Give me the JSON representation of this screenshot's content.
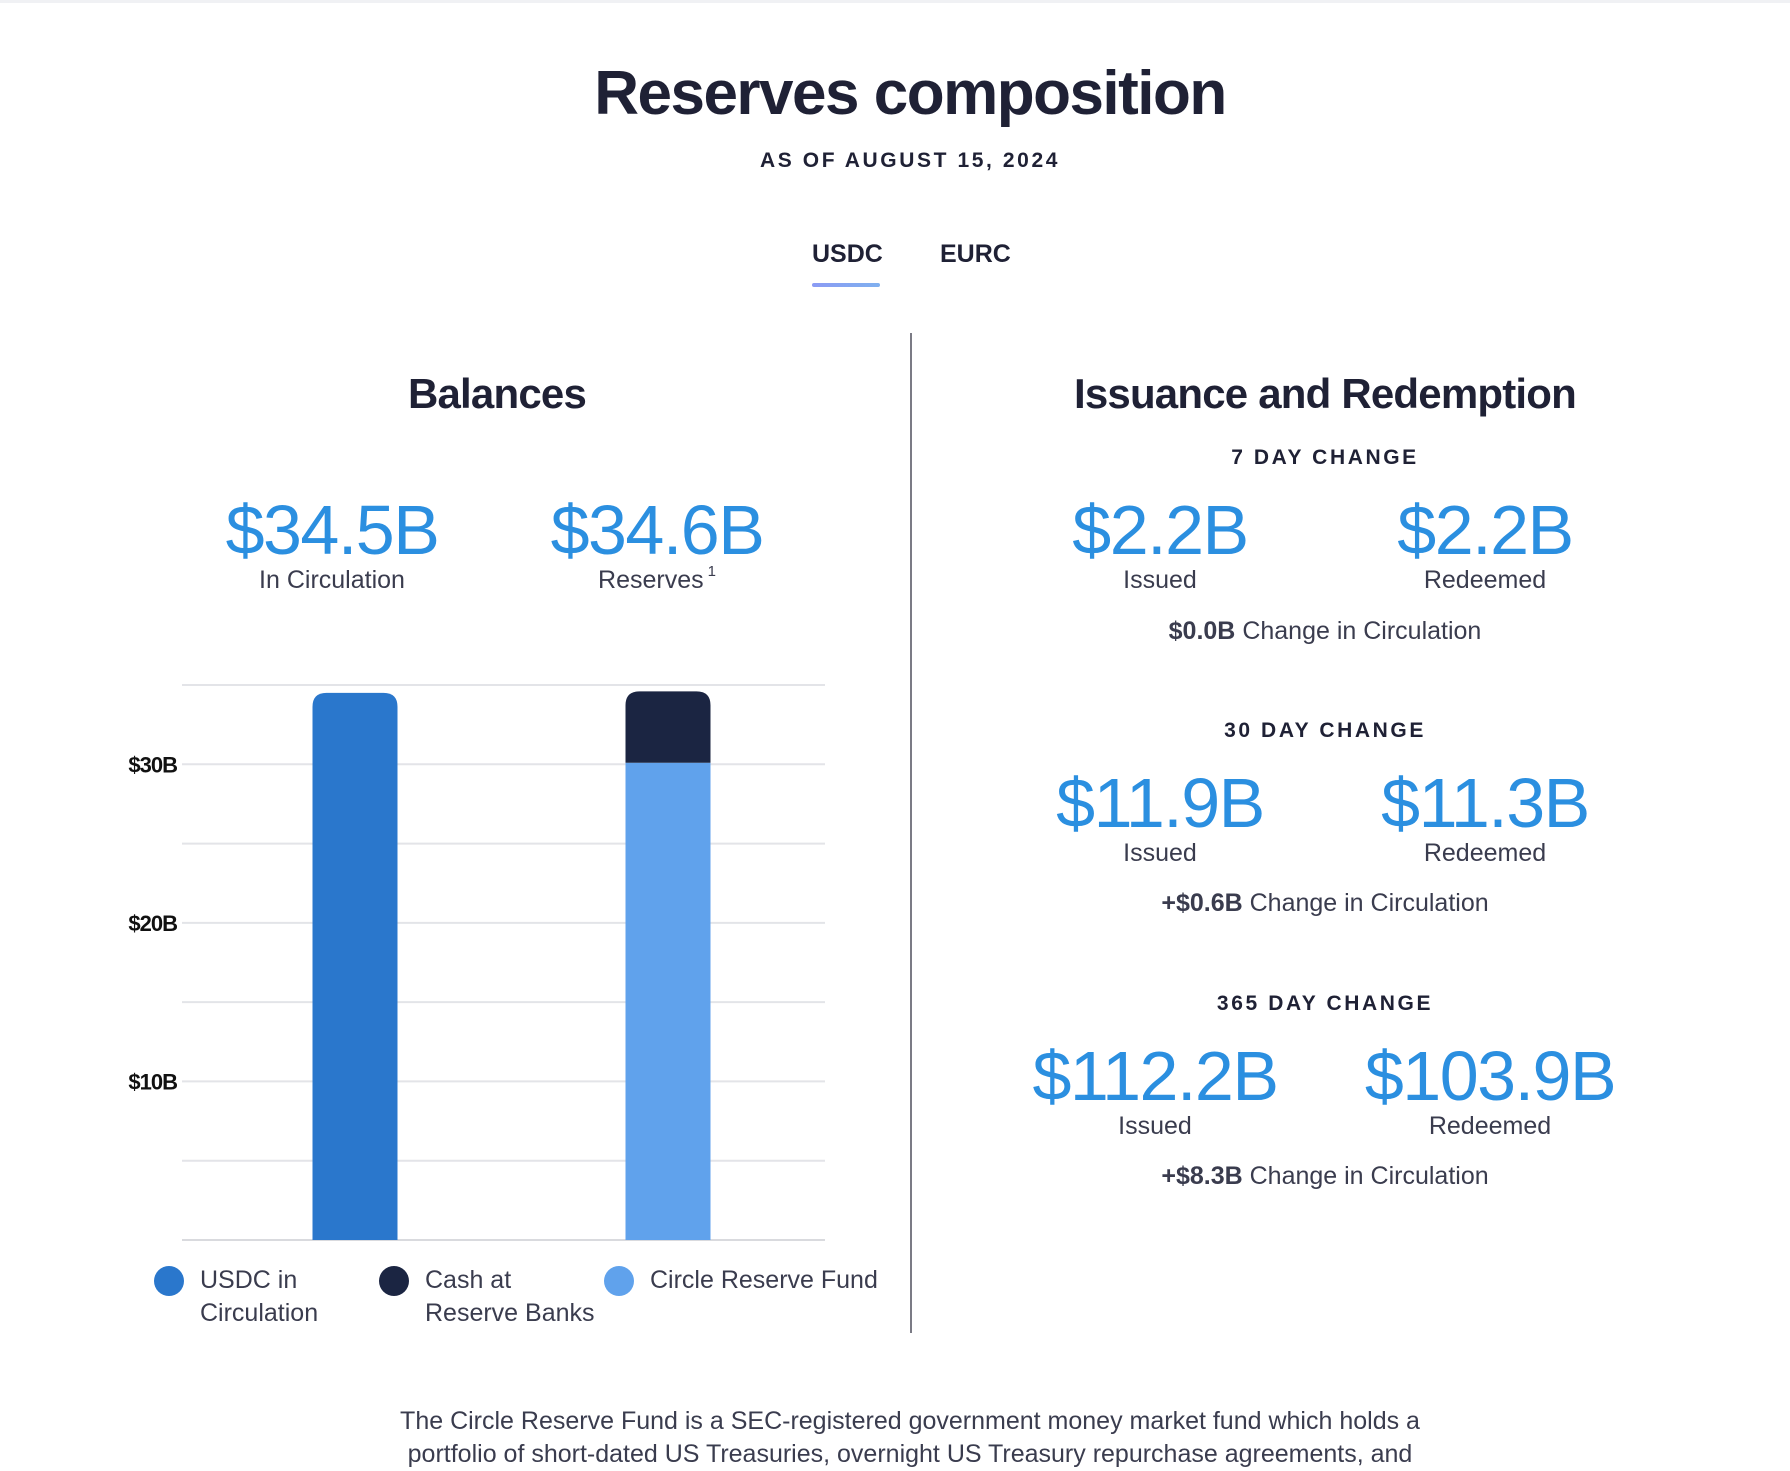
{
  "header": {
    "title": "Reserves composition",
    "subtitle": "AS OF AUGUST 15, 2024"
  },
  "tabs": [
    {
      "label": "USDC",
      "active": true
    },
    {
      "label": "EURC",
      "active": false
    }
  ],
  "balances": {
    "title": "Balances",
    "circulation_value": "$34.5B",
    "circulation_label": "In Circulation",
    "reserves_value": "$34.6B",
    "reserves_label": "Reserves",
    "reserves_footnote_mark": "1"
  },
  "issuance": {
    "title": "Issuance and Redemption",
    "periods": [
      {
        "label": "7 DAY CHANGE",
        "issued": "$2.2B",
        "issued_label": "Issued",
        "redeemed": "$2.2B",
        "redeemed_label": "Redeemed",
        "change_value": "$0.0B",
        "change_text": "Change in Circulation"
      },
      {
        "label": "30 DAY CHANGE",
        "issued": "$11.9B",
        "issued_label": "Issued",
        "redeemed": "$11.3B",
        "redeemed_label": "Redeemed",
        "change_value": "+$0.6B",
        "change_text": "Change in Circulation"
      },
      {
        "label": "365 DAY CHANGE",
        "issued": "$112.2B",
        "issued_label": "Issued",
        "redeemed": "$103.9B",
        "redeemed_label": "Redeemed",
        "change_value": "+$8.3B",
        "change_text": "Change in Circulation"
      }
    ]
  },
  "chart_data": {
    "type": "bar",
    "stacked": true,
    "title": "",
    "xlabel": "",
    "ylabel": "",
    "ylim": [
      0,
      35
    ],
    "grid_values": [
      5,
      10,
      15,
      20,
      25,
      30,
      35
    ],
    "yticks": [
      10,
      20,
      30
    ],
    "ytick_labels": [
      "$10B",
      "$20B",
      "$30B"
    ],
    "categories": [
      "In Circulation",
      "Reserves"
    ],
    "series": [
      {
        "name": "USDC in Circulation",
        "color": "#2a77cc",
        "values": [
          34.5,
          0
        ]
      },
      {
        "name": "Circle Reserve Fund",
        "color": "#60a2ec",
        "values": [
          0,
          30.1
        ]
      },
      {
        "name": "Cash at Reserve Banks",
        "color": "#1b2542",
        "values": [
          0,
          4.5
        ]
      }
    ],
    "legend": [
      {
        "label_line1": "USDC in",
        "label_line2": "Circulation",
        "color": "#2a77cc"
      },
      {
        "label_line1": "Cash at",
        "label_line2": "Reserve Banks",
        "color": "#1b2542"
      },
      {
        "label_line1": "Circle Reserve Fund",
        "label_line2": "",
        "color": "#60a2ec"
      }
    ]
  },
  "footnote": {
    "line1": "The Circle Reserve Fund is a SEC-registered government money market fund which holds a",
    "line2": "portfolio of short-dated US Treasuries, overnight US Treasury repurchase agreements, and"
  }
}
